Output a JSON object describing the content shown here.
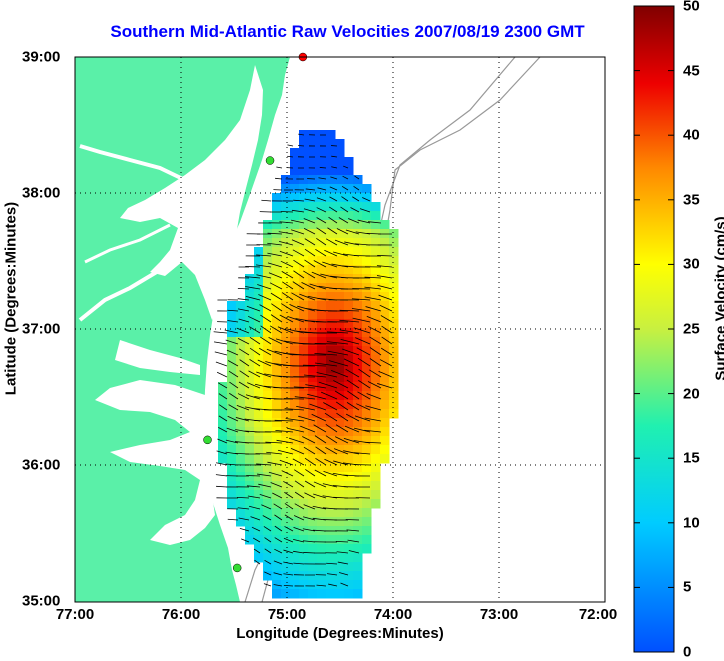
{
  "title": "Southern Mid-Atlantic Raw Velocities 2007/08/19 2300 GMT",
  "x_axis": {
    "label": "Longitude (Degrees:Minutes)",
    "ticks": [
      "77:00",
      "76:00",
      "75:00",
      "74:00",
      "73:00",
      "72:00"
    ]
  },
  "y_axis": {
    "label": "Latitude (Degrees:Minutes)",
    "ticks": [
      "39:00",
      "38:00",
      "37:00",
      "36:00",
      "35:00"
    ]
  },
  "colorbar": {
    "label": "Surface Velocity (cm/s)",
    "ticks": [
      "50",
      "45",
      "40",
      "35",
      "30",
      "25",
      "20",
      "15",
      "10",
      "5",
      "0"
    ],
    "range": [
      0,
      50
    ],
    "colormap": "jet"
  },
  "map": {
    "lon_range": [
      -77,
      -72
    ],
    "lat_range": [
      35,
      39
    ],
    "land_color": "#5af0a8",
    "grid": "dotted",
    "stations": [
      {
        "color": "#ff0000",
        "lon": -74.85,
        "lat": 39.0
      },
      {
        "color": "#33dd33",
        "lon": -75.16,
        "lat": 38.24
      },
      {
        "color": "#33dd33",
        "lon": -75.75,
        "lat": 36.19
      },
      {
        "color": "#33dd33",
        "lon": -75.47,
        "lat": 35.25
      }
    ]
  }
}
